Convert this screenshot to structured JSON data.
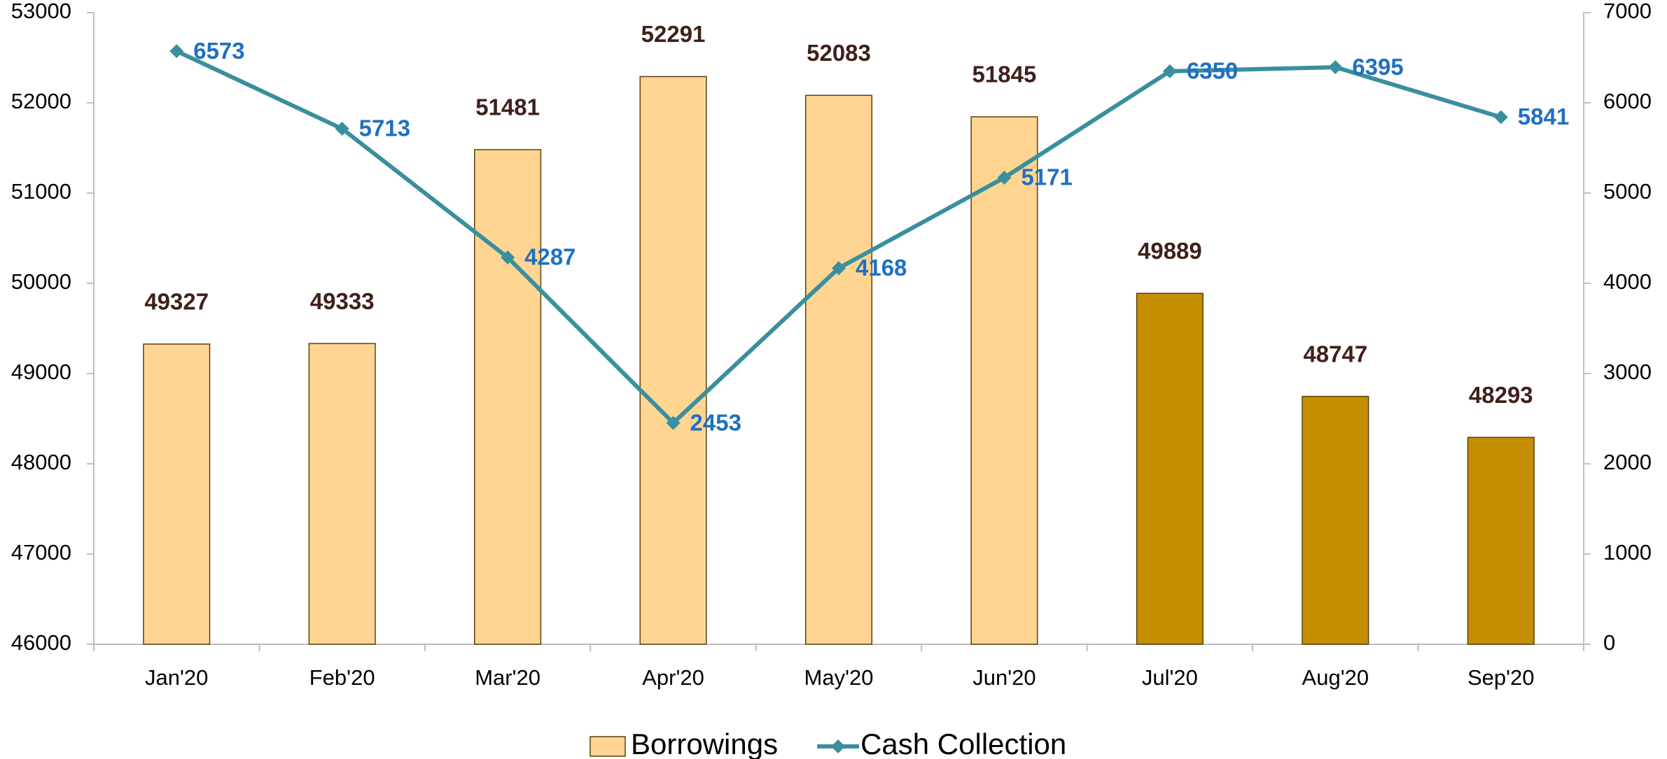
{
  "chart_data": {
    "type": "bar-line",
    "categories": [
      "Jan'20",
      "Feb'20",
      "Mar'20",
      "Apr'20",
      "May'20",
      "Jun'20",
      "Jul'20",
      "Aug'20",
      "Sep'20"
    ],
    "series": [
      {
        "name": "Borrowings",
        "type": "bar",
        "color": "#ffd591",
        "colors": [
          "#ffd591",
          "#ffd591",
          "#ffd591",
          "#ffd591",
          "#ffd591",
          "#ffd591",
          "#c58e00",
          "#c58e00",
          "#c58e00"
        ],
        "values": [
          49327,
          49333,
          51481,
          52291,
          52083,
          51845,
          49889,
          48747,
          48293
        ]
      },
      {
        "name": "Cash Collection",
        "type": "line",
        "axis": "y2",
        "color": "#3a8f9e",
        "values": [
          6573,
          5713,
          4287,
          2453,
          4168,
          5171,
          6350,
          6395,
          5841
        ]
      }
    ],
    "ylim": [
      46000,
      53000
    ],
    "yticks": [
      46000,
      47000,
      48000,
      49000,
      50000,
      51000,
      52000,
      53000
    ],
    "y2lim": [
      0,
      7000
    ],
    "y2ticks": [
      0,
      1000,
      2000,
      3000,
      4000,
      5000,
      6000,
      7000
    ],
    "legend": "bottom"
  }
}
